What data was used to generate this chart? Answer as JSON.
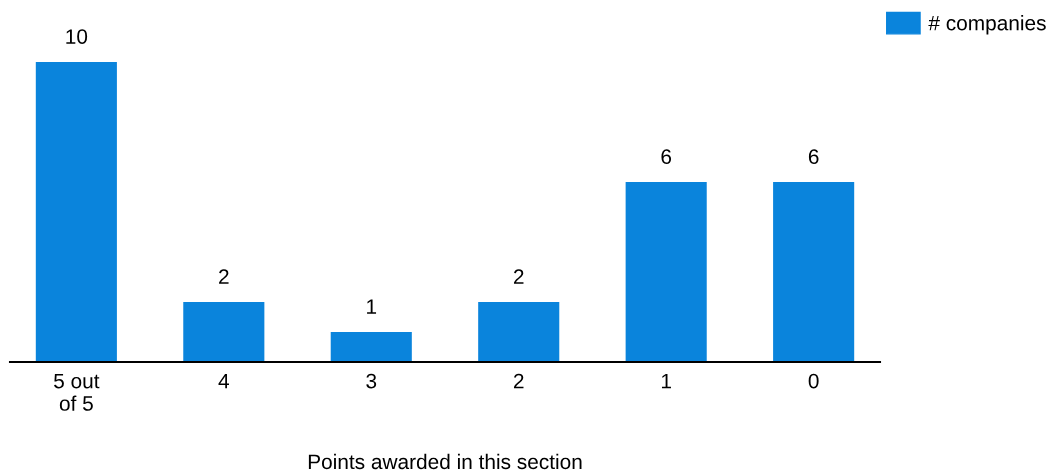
{
  "chart_data": {
    "type": "bar",
    "xlabel": "Points awarded in this section",
    "categories": [
      "5 out\nof 5",
      "4",
      "3",
      "2",
      "1",
      "0"
    ],
    "series": [
      {
        "name": "# companies",
        "color": "#0a84dc",
        "values": [
          10,
          2,
          1,
          2,
          6,
          6
        ]
      }
    ],
    "data_labels": true,
    "legend": "top right",
    "grid": false
  }
}
